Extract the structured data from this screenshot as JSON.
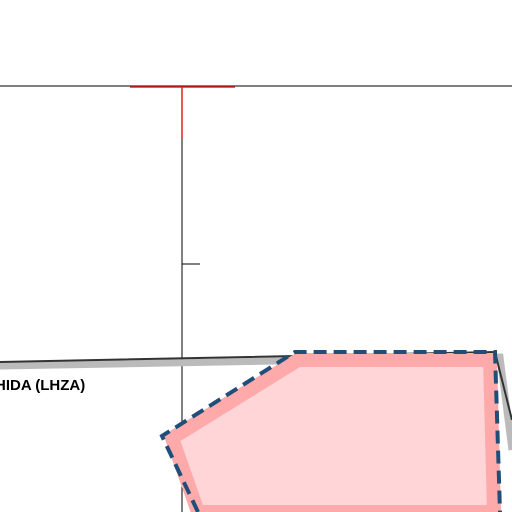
{
  "map": {
    "label": "HIDA (LHZA)"
  }
}
